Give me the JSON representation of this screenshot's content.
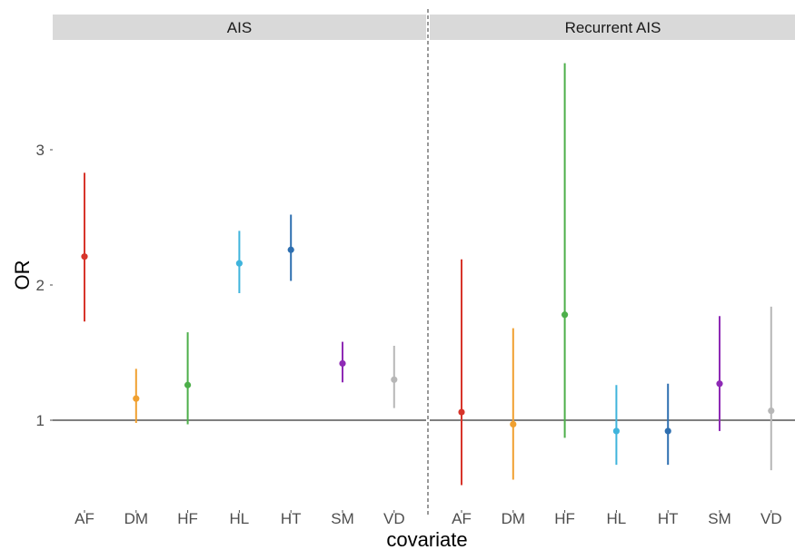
{
  "chart_data": {
    "type": "scatter",
    "xlabel": "covariate",
    "ylabel": "OR",
    "categories": [
      "AF",
      "DM",
      "HF",
      "HL",
      "HT",
      "SM",
      "VD"
    ],
    "ylim": [
      0.45,
      3.3
    ],
    "y_ticks": [
      "1",
      "2",
      "3"
    ],
    "reference_line": 1,
    "grid": false,
    "legend": "none",
    "colors": {
      "AF": "#d7352b",
      "DM": "#f0a030",
      "HF": "#4daf4a",
      "HL": "#3fb4dc",
      "HT": "#2e6fb0",
      "SM": "#8e2ab5",
      "VD": "#b7b7b7"
    },
    "panels": [
      {
        "strip": "AIS",
        "points": [
          {
            "x": "AF",
            "or": 2.21,
            "lower": 1.73,
            "upper": 2.83
          },
          {
            "x": "DM",
            "or": 1.16,
            "lower": 0.98,
            "upper": 1.38
          },
          {
            "x": "HF",
            "or": 1.26,
            "lower": 0.97,
            "upper": 1.65
          },
          {
            "x": "HL",
            "or": 2.16,
            "lower": 1.94,
            "upper": 2.4
          },
          {
            "x": "HT",
            "or": 2.26,
            "lower": 2.03,
            "upper": 2.52
          },
          {
            "x": "SM",
            "or": 1.42,
            "lower": 1.28,
            "upper": 1.58
          },
          {
            "x": "VD",
            "or": 1.3,
            "lower": 1.09,
            "upper": 1.55
          }
        ]
      },
      {
        "strip": "Recurrent AIS",
        "points": [
          {
            "x": "AF",
            "or": 1.06,
            "lower": 0.52,
            "upper": 2.19
          },
          {
            "x": "DM",
            "or": 0.97,
            "lower": 0.56,
            "upper": 1.68
          },
          {
            "x": "HF",
            "or": 1.78,
            "lower": 0.87,
            "upper": 3.64
          },
          {
            "x": "HL",
            "or": 0.92,
            "lower": 0.67,
            "upper": 1.26
          },
          {
            "x": "HT",
            "or": 0.92,
            "lower": 0.67,
            "upper": 1.27
          },
          {
            "x": "SM",
            "or": 1.27,
            "lower": 0.92,
            "upper": 1.77
          },
          {
            "x": "VD",
            "or": 1.07,
            "lower": 0.63,
            "upper": 1.84
          }
        ]
      }
    ]
  }
}
